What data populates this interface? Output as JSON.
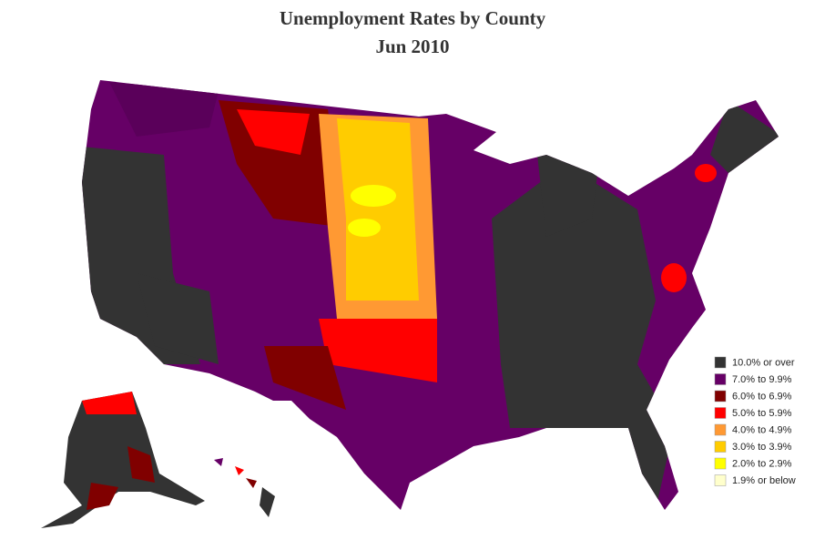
{
  "map": {
    "title": "Unemployment Rates by County",
    "subtitle": "Jun 2010",
    "legend": [
      {
        "label": "10.0% or over",
        "color": "#333333"
      },
      {
        "label": "7.0% to 9.9%",
        "color": "#660066"
      },
      {
        "label": "6.0% to 6.9%",
        "color": "#800000"
      },
      {
        "label": "5.0% to 5.9%",
        "color": "#ff0000"
      },
      {
        "label": "4.0% to 4.9%",
        "color": "#ff9933"
      },
      {
        "label": "3.0% to 3.9%",
        "color": "#ffcc00"
      },
      {
        "label": "2.0% to 2.9%",
        "color": "#ffff00"
      },
      {
        "label": "1.9% or below",
        "color": "#ffffcc"
      }
    ]
  }
}
